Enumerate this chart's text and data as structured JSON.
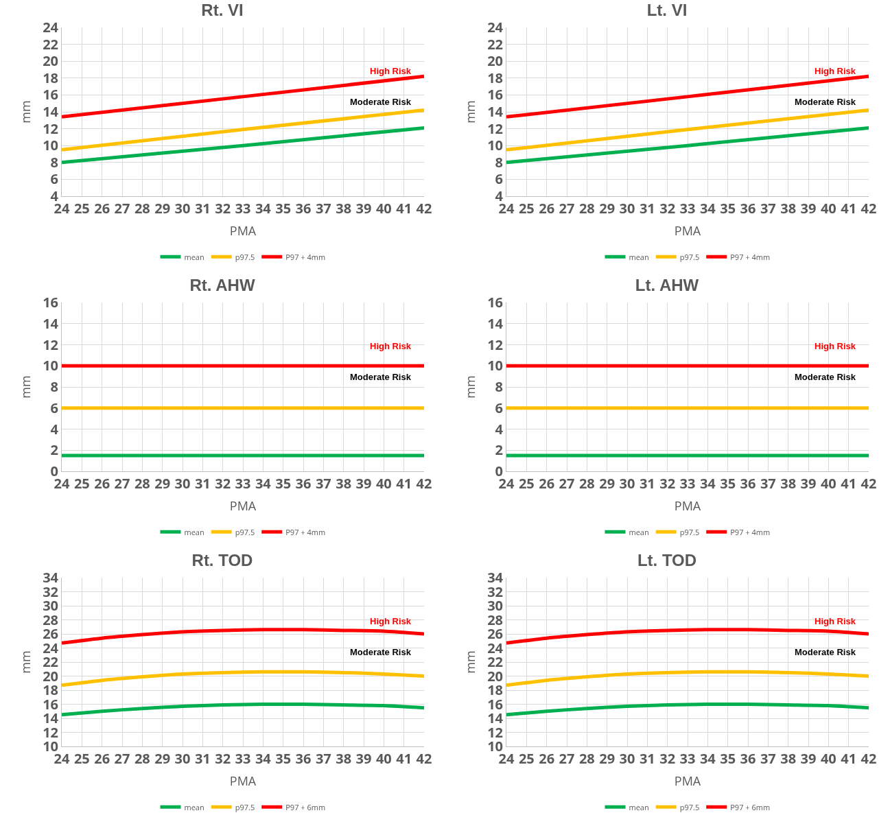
{
  "chart_data": [
    {
      "type": "line",
      "title": "Rt. VI",
      "xlabel": "PMA",
      "ylabel": "mm",
      "x": [
        24,
        33,
        42
      ],
      "xlim": [
        24,
        42
      ],
      "xticks": [
        24,
        25,
        26,
        27,
        28,
        29,
        30,
        31,
        32,
        33,
        34,
        35,
        36,
        37,
        38,
        39,
        40,
        41,
        42
      ],
      "ylim": [
        4,
        24
      ],
      "yticks": [
        4,
        6,
        8,
        10,
        12,
        14,
        16,
        18,
        20,
        22,
        24
      ],
      "grid": true,
      "legend": "bottom",
      "marker": "none",
      "line_style": "solid",
      "series": [
        {
          "name": "mean",
          "color": "#00b050",
          "values": [
            8,
            10,
            12.1
          ]
        },
        {
          "name": "p97.5",
          "color": "#ffc000",
          "values": [
            9.5,
            11.9,
            14.2
          ]
        },
        {
          "name": "P97 + 4mm",
          "color": "#ff0000",
          "values": [
            13.4,
            15.8,
            18.2
          ]
        }
      ],
      "annotations": [
        "High Risk",
        "Moderate Risk"
      ]
    },
    {
      "type": "line",
      "title": "Lt. VI",
      "xlabel": "PMA",
      "ylabel": "mm",
      "x": [
        24,
        33,
        42
      ],
      "xlim": [
        24,
        42
      ],
      "xticks": [
        24,
        25,
        26,
        27,
        28,
        29,
        30,
        31,
        32,
        33,
        34,
        35,
        36,
        37,
        38,
        39,
        40,
        41,
        42
      ],
      "ylim": [
        4,
        24
      ],
      "yticks": [
        4,
        6,
        8,
        10,
        12,
        14,
        16,
        18,
        20,
        22,
        24
      ],
      "grid": true,
      "legend": "bottom",
      "marker": "none",
      "line_style": "solid",
      "series": [
        {
          "name": "mean",
          "color": "#00b050",
          "values": [
            8,
            10,
            12.1
          ]
        },
        {
          "name": "p97.5",
          "color": "#ffc000",
          "values": [
            9.5,
            11.9,
            14.2
          ]
        },
        {
          "name": "P97 + 4mm",
          "color": "#ff0000",
          "values": [
            13.4,
            15.8,
            18.2
          ]
        }
      ],
      "annotations": [
        "High Risk",
        "Moderate Risk"
      ]
    },
    {
      "type": "line",
      "title": "Rt. AHW",
      "xlabel": "PMA",
      "ylabel": "mm",
      "x": [
        24,
        33,
        42
      ],
      "xlim": [
        24,
        42
      ],
      "xticks": [
        24,
        25,
        26,
        27,
        28,
        29,
        30,
        31,
        32,
        33,
        34,
        35,
        36,
        37,
        38,
        39,
        40,
        41,
        42
      ],
      "ylim": [
        0,
        16
      ],
      "yticks": [
        0,
        2,
        4,
        6,
        8,
        10,
        12,
        14,
        16
      ],
      "grid": true,
      "legend": "bottom",
      "marker": "none",
      "line_style": "solid",
      "series": [
        {
          "name": "mean",
          "color": "#00b050",
          "values": [
            1.5,
            1.5,
            1.5
          ]
        },
        {
          "name": "p97.5",
          "color": "#ffc000",
          "values": [
            6,
            6,
            6
          ]
        },
        {
          "name": "P97 + 4mm",
          "color": "#ff0000",
          "values": [
            10,
            10,
            10
          ]
        }
      ],
      "annotations": [
        "High Risk",
        "Moderate Risk"
      ]
    },
    {
      "type": "line",
      "title": "Lt. AHW",
      "xlabel": "PMA",
      "ylabel": "mm",
      "x": [
        24,
        33,
        42
      ],
      "xlim": [
        24,
        42
      ],
      "xticks": [
        24,
        25,
        26,
        27,
        28,
        29,
        30,
        31,
        32,
        33,
        34,
        35,
        36,
        37,
        38,
        39,
        40,
        41,
        42
      ],
      "ylim": [
        0,
        16
      ],
      "yticks": [
        0,
        2,
        4,
        6,
        8,
        10,
        12,
        14,
        16
      ],
      "grid": true,
      "legend": "bottom",
      "marker": "none",
      "line_style": "solid",
      "series": [
        {
          "name": "mean",
          "color": "#00b050",
          "values": [
            1.5,
            1.5,
            1.5
          ]
        },
        {
          "name": "p97.5",
          "color": "#ffc000",
          "values": [
            6,
            6,
            6
          ]
        },
        {
          "name": "P97 + 4mm",
          "color": "#ff0000",
          "values": [
            10,
            10,
            10
          ]
        }
      ],
      "annotations": [
        "High Risk",
        "Moderate Risk"
      ]
    },
    {
      "type": "line",
      "title": "Rt. TOD",
      "xlabel": "PMA",
      "ylabel": "mm",
      "x": [
        24,
        26,
        28,
        30,
        32,
        34,
        36,
        38,
        40,
        42
      ],
      "xlim": [
        24,
        42
      ],
      "xticks": [
        24,
        25,
        26,
        27,
        28,
        29,
        30,
        31,
        32,
        33,
        34,
        35,
        36,
        37,
        38,
        39,
        40,
        41,
        42
      ],
      "ylim": [
        10,
        34
      ],
      "yticks": [
        10,
        12,
        14,
        16,
        18,
        20,
        22,
        24,
        26,
        28,
        30,
        32,
        34
      ],
      "grid": true,
      "legend": "bottom",
      "marker": "none",
      "line_style": "solid",
      "series": [
        {
          "name": "mean",
          "color": "#00b050",
          "values": [
            14.5,
            15,
            15.4,
            15.7,
            15.9,
            16,
            16,
            15.9,
            15.8,
            15.5
          ]
        },
        {
          "name": "p97.5",
          "color": "#ffc000",
          "values": [
            18.7,
            19.4,
            19.9,
            20.3,
            20.5,
            20.6,
            20.6,
            20.5,
            20.3,
            20
          ]
        },
        {
          "name": "P97 + 6mm",
          "color": "#ff0000",
          "values": [
            24.7,
            25.4,
            25.9,
            26.3,
            26.5,
            26.6,
            26.6,
            26.5,
            26.4,
            26
          ]
        }
      ],
      "annotations": [
        "High Risk",
        "Moderate Risk"
      ]
    },
    {
      "type": "line",
      "title": "Lt. TOD",
      "xlabel": "PMA",
      "ylabel": "mm",
      "x": [
        24,
        26,
        28,
        30,
        32,
        34,
        36,
        38,
        40,
        42
      ],
      "xlim": [
        24,
        42
      ],
      "xticks": [
        24,
        25,
        26,
        27,
        28,
        29,
        30,
        31,
        32,
        33,
        34,
        35,
        36,
        37,
        38,
        39,
        40,
        41,
        42
      ],
      "ylim": [
        10,
        34
      ],
      "yticks": [
        10,
        12,
        14,
        16,
        18,
        20,
        22,
        24,
        26,
        28,
        30,
        32,
        34
      ],
      "grid": true,
      "legend": "bottom",
      "marker": "none",
      "line_style": "solid",
      "series": [
        {
          "name": "mean",
          "color": "#00b050",
          "values": [
            14.5,
            15,
            15.4,
            15.7,
            15.9,
            16,
            16,
            15.9,
            15.8,
            15.5
          ]
        },
        {
          "name": "p97.5",
          "color": "#ffc000",
          "values": [
            18.7,
            19.4,
            19.9,
            20.3,
            20.5,
            20.6,
            20.6,
            20.5,
            20.3,
            20
          ]
        },
        {
          "name": "P97 + 6mm",
          "color": "#ff0000",
          "values": [
            24.7,
            25.4,
            25.9,
            26.3,
            26.5,
            26.6,
            26.6,
            26.5,
            26.4,
            26
          ]
        }
      ],
      "annotations": [
        "High Risk",
        "Moderate Risk"
      ]
    }
  ]
}
